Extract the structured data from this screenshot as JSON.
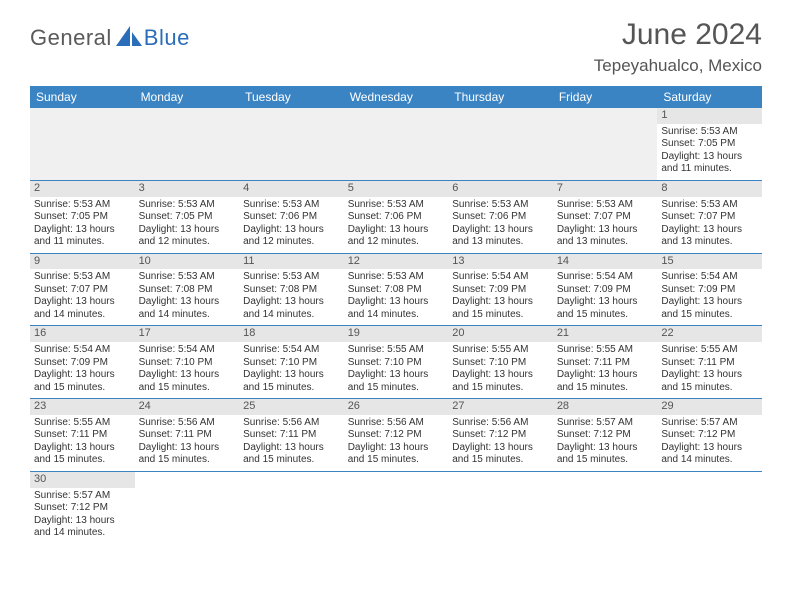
{
  "logo": {
    "text1": "General",
    "text2": "Blue"
  },
  "title": "June 2024",
  "location": "Tepeyahualco, Mexico",
  "colors": {
    "header_bg": "#3b84c4",
    "header_text": "#ffffff",
    "daynum_bg": "#e6e6e6",
    "border": "#3b84c4",
    "logo_gray": "#5a5a5a",
    "logo_blue": "#2a6db8",
    "title_gray": "#555555",
    "body_text": "#333333",
    "blank_bg": "#f0f0f0",
    "page_bg": "#ffffff"
  },
  "fonts": {
    "title_size_pt": 22,
    "location_size_pt": 13,
    "day_header_size_pt": 9,
    "daynum_size_pt": 8,
    "cell_size_pt": 7.5
  },
  "day_headers": [
    "Sunday",
    "Monday",
    "Tuesday",
    "Wednesday",
    "Thursday",
    "Friday",
    "Saturday"
  ],
  "weeks": [
    [
      null,
      null,
      null,
      null,
      null,
      null,
      {
        "n": "1",
        "sr": "Sunrise: 5:53 AM",
        "ss": "Sunset: 7:05 PM",
        "d1": "Daylight: 13 hours",
        "d2": "and 11 minutes."
      }
    ],
    [
      {
        "n": "2",
        "sr": "Sunrise: 5:53 AM",
        "ss": "Sunset: 7:05 PM",
        "d1": "Daylight: 13 hours",
        "d2": "and 11 minutes."
      },
      {
        "n": "3",
        "sr": "Sunrise: 5:53 AM",
        "ss": "Sunset: 7:05 PM",
        "d1": "Daylight: 13 hours",
        "d2": "and 12 minutes."
      },
      {
        "n": "4",
        "sr": "Sunrise: 5:53 AM",
        "ss": "Sunset: 7:06 PM",
        "d1": "Daylight: 13 hours",
        "d2": "and 12 minutes."
      },
      {
        "n": "5",
        "sr": "Sunrise: 5:53 AM",
        "ss": "Sunset: 7:06 PM",
        "d1": "Daylight: 13 hours",
        "d2": "and 12 minutes."
      },
      {
        "n": "6",
        "sr": "Sunrise: 5:53 AM",
        "ss": "Sunset: 7:06 PM",
        "d1": "Daylight: 13 hours",
        "d2": "and 13 minutes."
      },
      {
        "n": "7",
        "sr": "Sunrise: 5:53 AM",
        "ss": "Sunset: 7:07 PM",
        "d1": "Daylight: 13 hours",
        "d2": "and 13 minutes."
      },
      {
        "n": "8",
        "sr": "Sunrise: 5:53 AM",
        "ss": "Sunset: 7:07 PM",
        "d1": "Daylight: 13 hours",
        "d2": "and 13 minutes."
      }
    ],
    [
      {
        "n": "9",
        "sr": "Sunrise: 5:53 AM",
        "ss": "Sunset: 7:07 PM",
        "d1": "Daylight: 13 hours",
        "d2": "and 14 minutes."
      },
      {
        "n": "10",
        "sr": "Sunrise: 5:53 AM",
        "ss": "Sunset: 7:08 PM",
        "d1": "Daylight: 13 hours",
        "d2": "and 14 minutes."
      },
      {
        "n": "11",
        "sr": "Sunrise: 5:53 AM",
        "ss": "Sunset: 7:08 PM",
        "d1": "Daylight: 13 hours",
        "d2": "and 14 minutes."
      },
      {
        "n": "12",
        "sr": "Sunrise: 5:53 AM",
        "ss": "Sunset: 7:08 PM",
        "d1": "Daylight: 13 hours",
        "d2": "and 14 minutes."
      },
      {
        "n": "13",
        "sr": "Sunrise: 5:54 AM",
        "ss": "Sunset: 7:09 PM",
        "d1": "Daylight: 13 hours",
        "d2": "and 15 minutes."
      },
      {
        "n": "14",
        "sr": "Sunrise: 5:54 AM",
        "ss": "Sunset: 7:09 PM",
        "d1": "Daylight: 13 hours",
        "d2": "and 15 minutes."
      },
      {
        "n": "15",
        "sr": "Sunrise: 5:54 AM",
        "ss": "Sunset: 7:09 PM",
        "d1": "Daylight: 13 hours",
        "d2": "and 15 minutes."
      }
    ],
    [
      {
        "n": "16",
        "sr": "Sunrise: 5:54 AM",
        "ss": "Sunset: 7:09 PM",
        "d1": "Daylight: 13 hours",
        "d2": "and 15 minutes."
      },
      {
        "n": "17",
        "sr": "Sunrise: 5:54 AM",
        "ss": "Sunset: 7:10 PM",
        "d1": "Daylight: 13 hours",
        "d2": "and 15 minutes."
      },
      {
        "n": "18",
        "sr": "Sunrise: 5:54 AM",
        "ss": "Sunset: 7:10 PM",
        "d1": "Daylight: 13 hours",
        "d2": "and 15 minutes."
      },
      {
        "n": "19",
        "sr": "Sunrise: 5:55 AM",
        "ss": "Sunset: 7:10 PM",
        "d1": "Daylight: 13 hours",
        "d2": "and 15 minutes."
      },
      {
        "n": "20",
        "sr": "Sunrise: 5:55 AM",
        "ss": "Sunset: 7:10 PM",
        "d1": "Daylight: 13 hours",
        "d2": "and 15 minutes."
      },
      {
        "n": "21",
        "sr": "Sunrise: 5:55 AM",
        "ss": "Sunset: 7:11 PM",
        "d1": "Daylight: 13 hours",
        "d2": "and 15 minutes."
      },
      {
        "n": "22",
        "sr": "Sunrise: 5:55 AM",
        "ss": "Sunset: 7:11 PM",
        "d1": "Daylight: 13 hours",
        "d2": "and 15 minutes."
      }
    ],
    [
      {
        "n": "23",
        "sr": "Sunrise: 5:55 AM",
        "ss": "Sunset: 7:11 PM",
        "d1": "Daylight: 13 hours",
        "d2": "and 15 minutes."
      },
      {
        "n": "24",
        "sr": "Sunrise: 5:56 AM",
        "ss": "Sunset: 7:11 PM",
        "d1": "Daylight: 13 hours",
        "d2": "and 15 minutes."
      },
      {
        "n": "25",
        "sr": "Sunrise: 5:56 AM",
        "ss": "Sunset: 7:11 PM",
        "d1": "Daylight: 13 hours",
        "d2": "and 15 minutes."
      },
      {
        "n": "26",
        "sr": "Sunrise: 5:56 AM",
        "ss": "Sunset: 7:12 PM",
        "d1": "Daylight: 13 hours",
        "d2": "and 15 minutes."
      },
      {
        "n": "27",
        "sr": "Sunrise: 5:56 AM",
        "ss": "Sunset: 7:12 PM",
        "d1": "Daylight: 13 hours",
        "d2": "and 15 minutes."
      },
      {
        "n": "28",
        "sr": "Sunrise: 5:57 AM",
        "ss": "Sunset: 7:12 PM",
        "d1": "Daylight: 13 hours",
        "d2": "and 15 minutes."
      },
      {
        "n": "29",
        "sr": "Sunrise: 5:57 AM",
        "ss": "Sunset: 7:12 PM",
        "d1": "Daylight: 13 hours",
        "d2": "and 14 minutes."
      }
    ],
    [
      {
        "n": "30",
        "sr": "Sunrise: 5:57 AM",
        "ss": "Sunset: 7:12 PM",
        "d1": "Daylight: 13 hours",
        "d2": "and 14 minutes."
      },
      null,
      null,
      null,
      null,
      null,
      null
    ]
  ]
}
